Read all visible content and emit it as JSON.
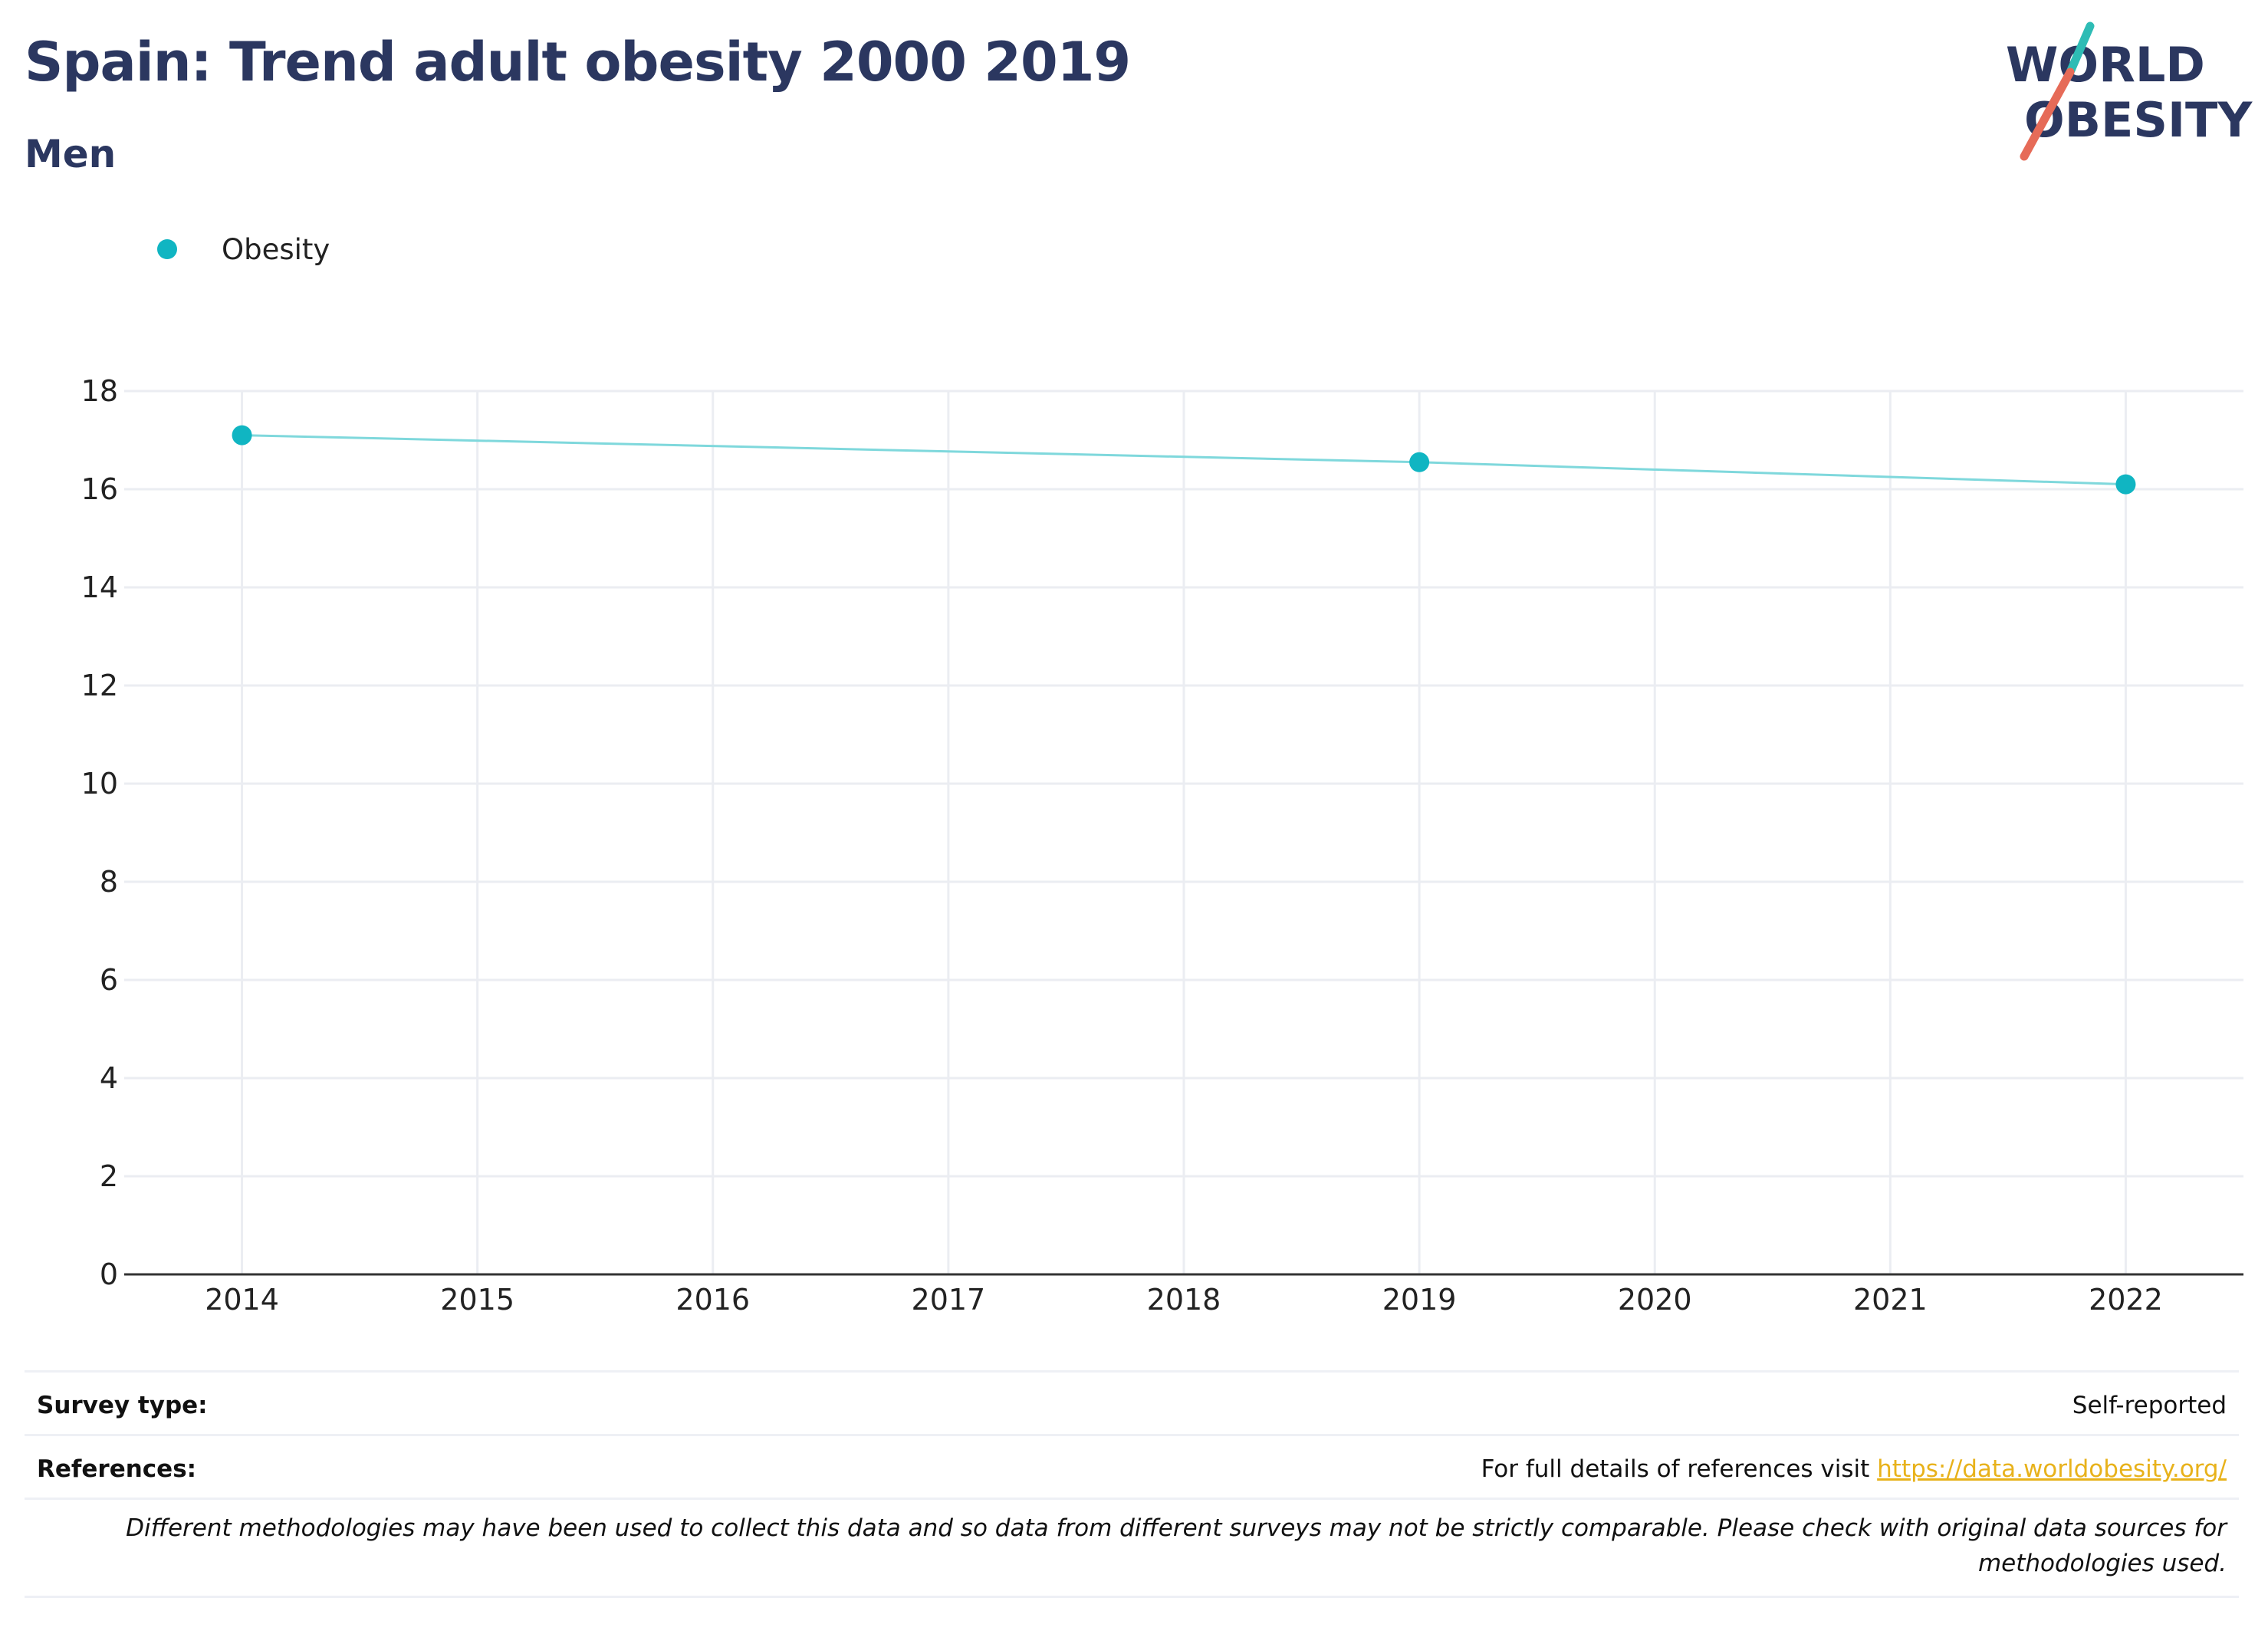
{
  "header": {
    "title": "Spain: Trend adult obesity 2000 2019",
    "subtitle": "Men"
  },
  "logo": {
    "line1": "WORLD",
    "line2": "OBESITY"
  },
  "colors": {
    "series": "#10b5c2",
    "line": "#7fd8dc",
    "title": "#2b3760",
    "link": "#e8b21b"
  },
  "chart_data": {
    "type": "line",
    "title": "Spain: Trend adult obesity 2000 2019",
    "subtitle": "Men",
    "x_ticks": [
      "2014",
      "2015",
      "2016",
      "2017",
      "2018",
      "2019",
      "2020",
      "2021",
      "2022"
    ],
    "y_ticks": [
      "0",
      "2",
      "4",
      "6",
      "8",
      "10",
      "12",
      "14",
      "16",
      "18"
    ],
    "xlim": [
      2013.5,
      2022.5
    ],
    "ylim": [
      0,
      18
    ],
    "grid": true,
    "legend_placement": "top-left",
    "series": [
      {
        "name": "Obesity",
        "x": [
          2014,
          2019,
          2022
        ],
        "values": [
          17.1,
          16.55,
          16.1
        ]
      }
    ]
  },
  "footer": {
    "survey_label": "Survey type:",
    "survey_value": "Self-reported",
    "references_label": "References:",
    "references_text": "For full details of references visit ",
    "references_link": "https://data.worldobesity.org/",
    "note": "Different methodologies may have been used to collect this data and so data from different surveys may not be strictly comparable. Please check with original data sources for methodologies used."
  }
}
